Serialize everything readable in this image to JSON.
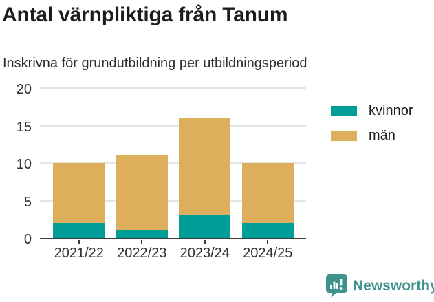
{
  "header": {
    "title": "Antal värnpliktiga från Tanum",
    "subtitle": "Inskrivna för grundutbildning per utbildningsperiod"
  },
  "chart_data": {
    "type": "bar",
    "stacked": true,
    "title": "Antal värnpliktiga från Tanum",
    "subtitle": "Inskrivna för grundutbildning per utbildningsperiod",
    "categories": [
      "2021/22",
      "2022/23",
      "2023/24",
      "2024/25"
    ],
    "series": [
      {
        "name": "kvinnor",
        "color": "#009E97",
        "values": [
          2,
          1,
          3,
          2
        ]
      },
      {
        "name": "män",
        "color": "#DDAE5C",
        "values": [
          8,
          10,
          13,
          8
        ]
      }
    ],
    "xlabel": "",
    "ylabel": "",
    "ylim": [
      0,
      20
    ],
    "yticks": [
      0,
      5,
      10,
      15,
      20
    ],
    "grid": true,
    "legend_position": "right",
    "axis_color": "#3a3a3a",
    "gridline_color": "#e4e4e4",
    "tick_label_color": "#333333"
  },
  "footer": {
    "brand": "Newsworthy",
    "brand_color": "#40938D"
  }
}
